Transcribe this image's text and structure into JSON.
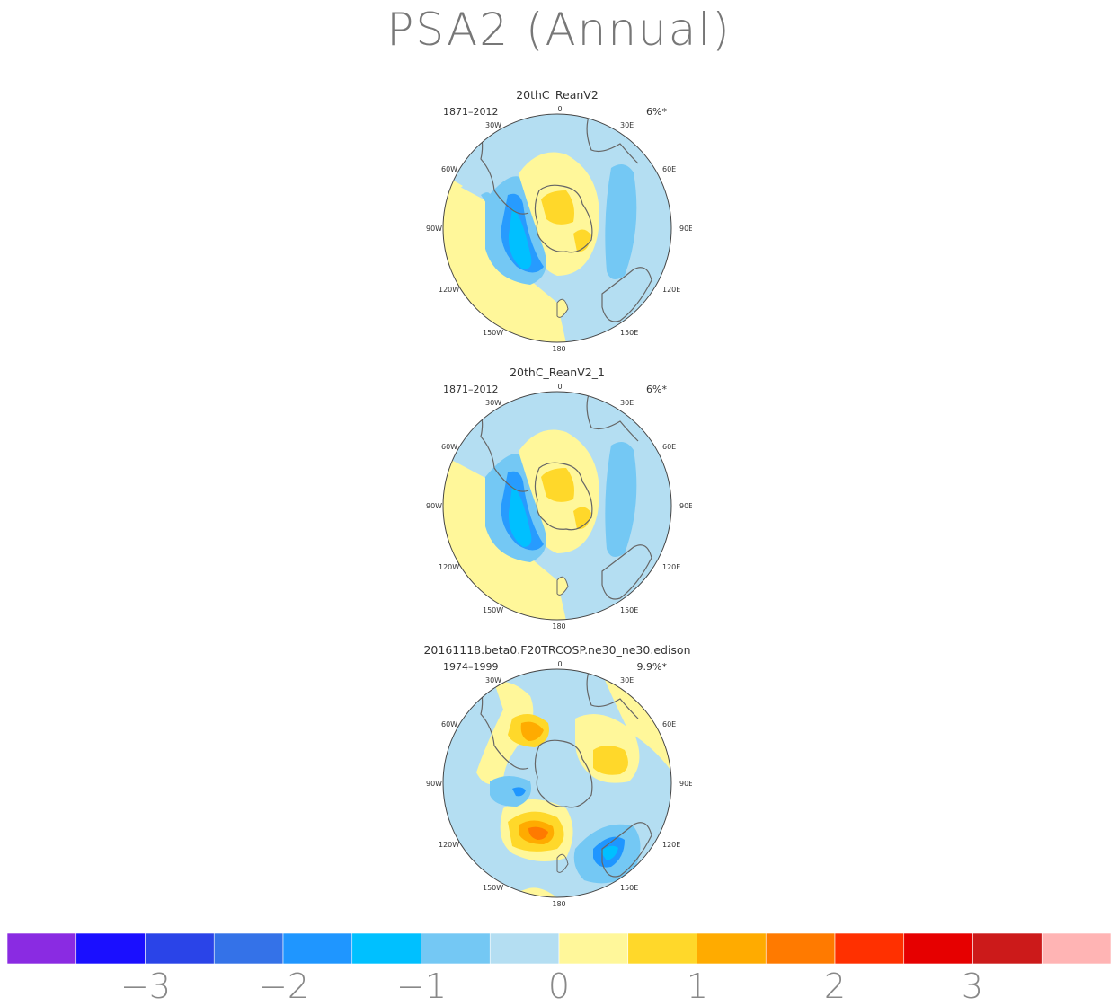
{
  "figure": {
    "title": "PSA2 (Annual)"
  },
  "panels": [
    {
      "title": "20thC_ReanV2",
      "years": "1871–2012",
      "variance": "6%*"
    },
    {
      "title": "20thC_ReanV2_1",
      "years": "1871–2012",
      "variance": "6%*"
    },
    {
      "title": "20161118.beta0.F20TRCOSP.ne30_ne30.edison",
      "years": "1974–1999",
      "variance": "9.9%*"
    }
  ],
  "longitude_labels": [
    "0",
    "30E",
    "60E",
    "90E",
    "120E",
    "150E",
    "180",
    "150W",
    "120W",
    "90W",
    "60W",
    "30W"
  ],
  "colorbar": {
    "colors": [
      "#8a2be2",
      "#1a0fff",
      "#2a44e8",
      "#3472e8",
      "#1f96ff",
      "#00c0ff",
      "#74c8f4",
      "#b4def2",
      "#fff79a",
      "#ffd82a",
      "#ffab00",
      "#ff7a00",
      "#ff3000",
      "#e60000",
      "#cc1a1a",
      "#ffb4b4"
    ],
    "tick_labels": [
      "−3",
      "−2",
      "−1",
      "0",
      "1",
      "2",
      "3"
    ]
  },
  "colors": {
    "land_outline": "#666666",
    "frame": "#444444"
  }
}
